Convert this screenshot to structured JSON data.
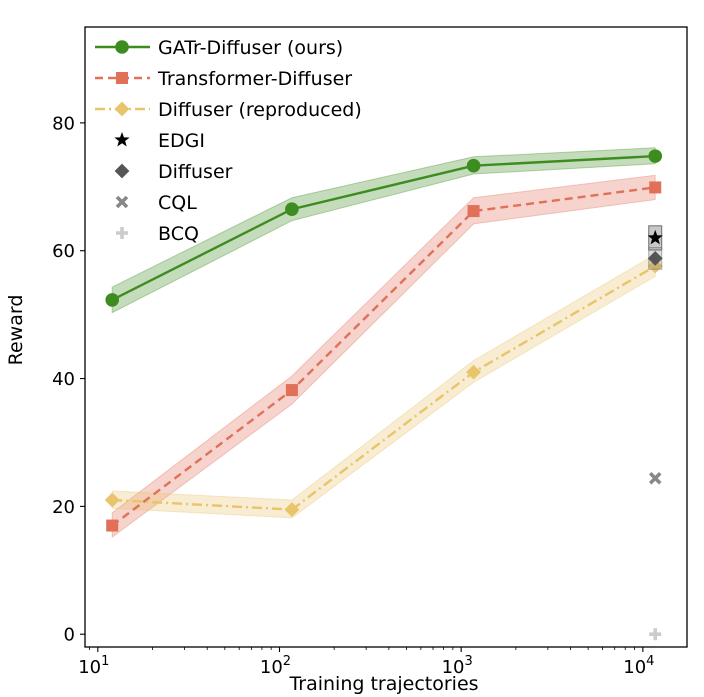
{
  "chart_data": {
    "type": "line",
    "title": "",
    "xlabel": "Training trajectories",
    "ylabel": "Reward",
    "xscale": "log",
    "xlim": [
      8.5,
      17500
    ],
    "ylim": [
      -2,
      95
    ],
    "xticks": [
      {
        "value": 10,
        "base": "10",
        "exp": "1"
      },
      {
        "value": 100,
        "base": "10",
        "exp": "2"
      },
      {
        "value": 1000,
        "base": "10",
        "exp": "3"
      },
      {
        "value": 10000,
        "base": "10",
        "exp": "4"
      }
    ],
    "yticks": [
      0,
      20,
      40,
      60,
      80
    ],
    "series": [
      {
        "name": "GATr-Diffuser (ours)",
        "color": "#3d8c1f",
        "marker": "circle",
        "linestyle": "solid",
        "x": [
          12,
          117,
          1170,
          11700
        ],
        "y": [
          52.3,
          66.5,
          73.3,
          74.8
        ],
        "lower": [
          50.3,
          64.7,
          72.0,
          73.6
        ],
        "upper": [
          54.3,
          68.3,
          74.7,
          76.1
        ]
      },
      {
        "name": "Transformer-Diffuser",
        "color": "#e07058",
        "marker": "square",
        "linestyle": "dashed",
        "x": [
          12,
          117,
          1170,
          11700
        ],
        "y": [
          17.0,
          38.2,
          66.2,
          69.9
        ],
        "lower": [
          15.2,
          36.0,
          64.2,
          68.0
        ],
        "upper": [
          19.0,
          40.4,
          68.3,
          71.8
        ]
      },
      {
        "name": "Diffuser (reproduced)",
        "color": "#e8c46a",
        "marker": "diamond",
        "linestyle": "dashdot",
        "x": [
          12,
          117,
          1170,
          11700
        ],
        "y": [
          21.0,
          19.5,
          41.0,
          57.6
        ],
        "lower": [
          19.7,
          18.2,
          39.4,
          56.0
        ],
        "upper": [
          22.4,
          21.0,
          42.8,
          59.4
        ]
      }
    ],
    "points": [
      {
        "name": "EDGI",
        "marker": "star",
        "color": "#000000",
        "x": 11700,
        "y": 62.0,
        "err": 1.9,
        "err_color": "#222222"
      },
      {
        "name": "Diffuser",
        "marker": "diamond",
        "color": "#555555",
        "x": 11700,
        "y": 58.8,
        "err": 1.7,
        "err_color": "#777777"
      },
      {
        "name": "CQL",
        "marker": "x",
        "color": "#888888",
        "x": 11700,
        "y": 24.4
      },
      {
        "name": "BCQ",
        "marker": "plus",
        "color": "#cccccc",
        "x": 11700,
        "y": 0.0
      }
    ],
    "legend_location": "top-left"
  }
}
